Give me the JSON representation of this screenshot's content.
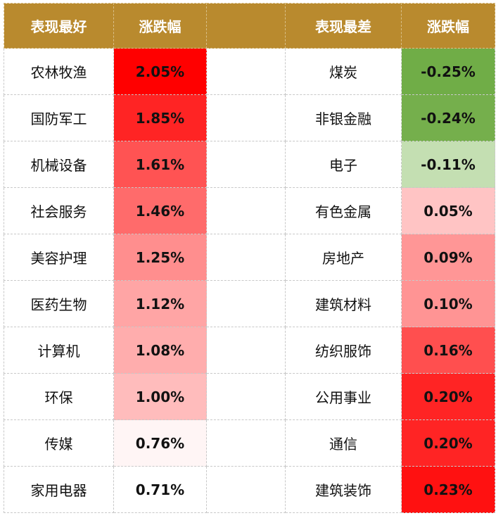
{
  "headers": [
    "表现最好",
    "涨跌幅",
    "",
    "表现最差",
    "涨跌幅"
  ],
  "rows": [
    {
      "best": "农林牧渔",
      "best_chg": "2.05%",
      "best_color": "#ff0000",
      "worst": "煤炭",
      "worst_chg": "-0.25%",
      "worst_color": "#70ad47"
    },
    {
      "best": "国防军工",
      "best_chg": "1.85%",
      "best_color": "#ff2424",
      "worst": "非银金融",
      "worst_chg": "-0.24%",
      "worst_color": "#75af4c"
    },
    {
      "best": "机械设备",
      "best_chg": "1.61%",
      "best_color": "#ff5353",
      "worst": "电子",
      "worst_chg": "-0.11%",
      "worst_color": "#c4dfb2"
    },
    {
      "best": "社会服务",
      "best_chg": "1.46%",
      "best_color": "#ff6b6b",
      "worst": "有色金属",
      "worst_chg": "0.05%",
      "worst_color": "#ffc4c4"
    },
    {
      "best": "美容护理",
      "best_chg": "1.25%",
      "best_color": "#ff8e8e",
      "worst": "房地产",
      "worst_chg": "0.09%",
      "worst_color": "#ff9696"
    },
    {
      "best": "医药生物",
      "best_chg": "1.12%",
      "best_color": "#ffa5a5",
      "worst": "建筑材料",
      "worst_chg": "0.10%",
      "worst_color": "#ff9494"
    },
    {
      "best": "计算机",
      "best_chg": "1.08%",
      "best_color": "#ffadad",
      "worst": "纺织服饰",
      "worst_chg": "0.16%",
      "worst_color": "#ff4f4f"
    },
    {
      "best": "环保",
      "best_chg": "1.00%",
      "best_color": "#ffbcbc",
      "worst": "公用事业",
      "worst_chg": "0.20%",
      "worst_color": "#ff2424"
    },
    {
      "best": "传媒",
      "best_chg": "0.76%",
      "best_color": "#fff5f5",
      "worst": "通信",
      "worst_chg": "0.20%",
      "worst_color": "#ff2424"
    },
    {
      "best": "家用电器",
      "best_chg": "0.71%",
      "best_color": "#ffffff",
      "worst": "建筑装饰",
      "worst_chg": "0.23%",
      "worst_color": "#ff1111"
    }
  ]
}
